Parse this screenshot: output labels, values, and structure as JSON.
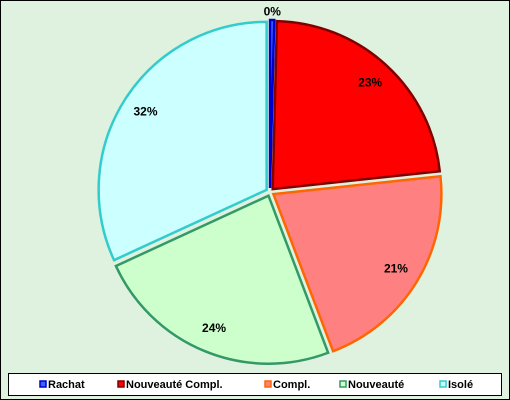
{
  "chart_data": {
    "type": "pie",
    "categories": [
      "Rachat",
      "Nouveauté Compl.",
      "Compl.",
      "Nouveauté",
      "Isolé"
    ],
    "values": [
      0.4,
      23,
      21,
      24,
      32
    ],
    "value_labels": [
      "0%",
      "23%",
      "21%",
      "24%",
      "32%"
    ],
    "colors": [
      "#3366ff",
      "#ff0000",
      "#ff8080",
      "#ccffcc",
      "#ccffff"
    ],
    "edge_colors": [
      "#0000cc",
      "#800000",
      "#ff6600",
      "#339966",
      "#33cccc"
    ],
    "legend": "bottom"
  }
}
